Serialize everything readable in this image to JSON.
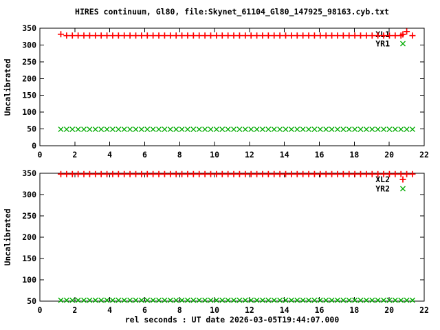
{
  "window": {
    "background": "#ffffff",
    "foreground": "#000000"
  },
  "chart_data": {
    "type": "scatter",
    "title": "HIRES continuum, Gl80, file:Skynet_61104_Gl80_147925_98163.cyb.txt",
    "xlabel": "rel seconds : UT date 2026-03-05T19:44:07.000",
    "xlim": [
      0,
      22
    ],
    "x_ticks": [
      0,
      2,
      4,
      6,
      8,
      10,
      12,
      14,
      16,
      18,
      20,
      22
    ],
    "x_start": 1.2,
    "x_step": 0.33,
    "n_points": 62,
    "grid": false,
    "legend_position": "top-right-inside",
    "panels": [
      {
        "name": "top-panel",
        "ylabel": "Uncalibrated",
        "ylim": [
          0,
          350
        ],
        "y_ticks": [
          0,
          50,
          100,
          150,
          200,
          250,
          300,
          350
        ],
        "series": [
          {
            "name": "XL1",
            "marker": "plus",
            "color": "#ff0000",
            "baseline_value": 328,
            "point_overrides": {
              "0": 332,
              "60": 340
            }
          },
          {
            "name": "YR1",
            "marker": "cross",
            "color": "#00aa00",
            "baseline_value": 49,
            "point_overrides": {}
          }
        ]
      },
      {
        "name": "bottom-panel",
        "ylabel": "Uncalibrated",
        "ylim": [
          50,
          350
        ],
        "y_ticks": [
          50,
          100,
          150,
          200,
          250,
          300,
          350
        ],
        "series": [
          {
            "name": "XL2",
            "marker": "plus",
            "color": "#ff0000",
            "baseline_value": 348,
            "point_overrides": {}
          },
          {
            "name": "YR2",
            "marker": "cross",
            "color": "#00aa00",
            "baseline_value": 52,
            "point_overrides": {}
          }
        ]
      }
    ]
  }
}
